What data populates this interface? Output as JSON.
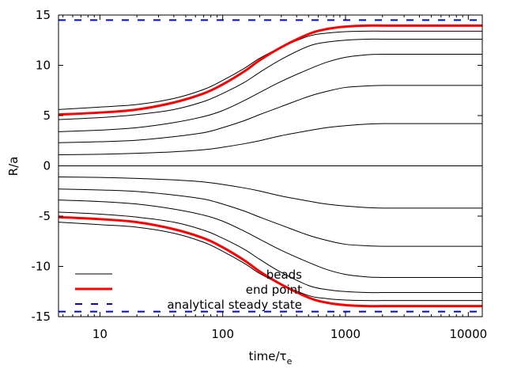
{
  "chart_data": {
    "type": "line",
    "xlabel": "time/τ",
    "xlabel_sub": "e",
    "ylabel": "R/a",
    "xscale": "log",
    "xlim": [
      4.6,
      13000
    ],
    "ylim": [
      -15,
      15
    ],
    "xticks": [
      {
        "value": 10,
        "label": "10"
      },
      {
        "value": 100,
        "label": "100"
      },
      {
        "value": 1000,
        "label": "1000"
      },
      {
        "value": 10000,
        "label": "10000"
      }
    ],
    "yticks": [
      {
        "value": 15,
        "label": "15"
      },
      {
        "value": 10,
        "label": "10"
      },
      {
        "value": 5,
        "label": "5"
      },
      {
        "value": 0,
        "label": "0"
      },
      {
        "value": -5,
        "label": "-5"
      },
      {
        "value": -10,
        "label": "-10"
      },
      {
        "value": -15,
        "label": "-15"
      }
    ],
    "x": [
      4.6,
      10,
      20,
      40,
      70,
      100,
      150,
      200,
      300,
      500,
      700,
      1000,
      1500,
      2000,
      3000,
      5000,
      13000
    ],
    "series": [
      {
        "name": "beads",
        "style": "beads",
        "values": [
          5.6,
          5.85,
          6.1,
          6.7,
          7.6,
          8.5,
          9.7,
          10.7,
          11.8,
          12.9,
          13.2,
          13.35,
          13.4,
          13.4,
          13.4,
          13.4,
          13.4
        ]
      },
      {
        "name": "end point",
        "style": "endpoint",
        "values": [
          5.1,
          5.3,
          5.6,
          6.3,
          7.2,
          8.1,
          9.4,
          10.5,
          11.8,
          13.1,
          13.6,
          13.85,
          13.95,
          13.95,
          13.95,
          13.95,
          13.95
        ]
      },
      {
        "style": "beads",
        "values": [
          4.6,
          4.8,
          5.1,
          5.6,
          6.4,
          7.2,
          8.3,
          9.3,
          10.6,
          11.9,
          12.3,
          12.5,
          12.6,
          12.6,
          12.6,
          12.6,
          12.6
        ]
      },
      {
        "style": "beads",
        "values": [
          3.4,
          3.55,
          3.8,
          4.3,
          4.9,
          5.5,
          6.5,
          7.3,
          8.4,
          9.6,
          10.3,
          10.8,
          11.05,
          11.1,
          11.1,
          11.1,
          11.1
        ]
      },
      {
        "style": "beads",
        "values": [
          2.3,
          2.4,
          2.55,
          2.9,
          3.3,
          3.8,
          4.5,
          5.1,
          5.9,
          6.9,
          7.4,
          7.8,
          7.95,
          8.0,
          8.0,
          8.0,
          8.0
        ]
      },
      {
        "style": "beads",
        "values": [
          1.1,
          1.15,
          1.25,
          1.4,
          1.6,
          1.85,
          2.2,
          2.5,
          3.0,
          3.5,
          3.8,
          4.0,
          4.15,
          4.2,
          4.2,
          4.2,
          4.2
        ]
      },
      {
        "style": "beads",
        "values": [
          0,
          0,
          0,
          0,
          0,
          0,
          0,
          0,
          0,
          0,
          0,
          0,
          0,
          0,
          0,
          0,
          0
        ]
      },
      {
        "style": "beads",
        "values": [
          -1.1,
          -1.15,
          -1.25,
          -1.4,
          -1.6,
          -1.85,
          -2.2,
          -2.5,
          -3.0,
          -3.5,
          -3.8,
          -4.0,
          -4.15,
          -4.2,
          -4.2,
          -4.2,
          -4.2
        ]
      },
      {
        "style": "beads",
        "values": [
          -2.3,
          -2.4,
          -2.55,
          -2.9,
          -3.3,
          -3.8,
          -4.5,
          -5.1,
          -5.9,
          -6.9,
          -7.4,
          -7.8,
          -7.95,
          -8.0,
          -8.0,
          -8.0,
          -8.0
        ]
      },
      {
        "style": "beads",
        "values": [
          -3.4,
          -3.55,
          -3.8,
          -4.3,
          -4.9,
          -5.5,
          -6.5,
          -7.3,
          -8.4,
          -9.6,
          -10.3,
          -10.8,
          -11.05,
          -11.1,
          -11.1,
          -11.1,
          -11.1
        ]
      },
      {
        "style": "beads",
        "values": [
          -4.6,
          -4.8,
          -5.1,
          -5.6,
          -6.4,
          -7.2,
          -8.3,
          -9.3,
          -10.6,
          -11.9,
          -12.3,
          -12.5,
          -12.6,
          -12.6,
          -12.6,
          -12.6,
          -12.6
        ]
      },
      {
        "style": "endpoint",
        "values": [
          -5.1,
          -5.3,
          -5.6,
          -6.3,
          -7.2,
          -8.1,
          -9.4,
          -10.5,
          -11.8,
          -13.1,
          -13.6,
          -13.85,
          -13.95,
          -13.95,
          -13.95,
          -13.95,
          -13.95
        ]
      },
      {
        "style": "beads",
        "values": [
          -5.6,
          -5.85,
          -6.1,
          -6.7,
          -7.6,
          -8.5,
          -9.7,
          -10.7,
          -11.8,
          -12.9,
          -13.2,
          -13.35,
          -13.4,
          -13.4,
          -13.4,
          -13.4,
          -13.4
        ]
      }
    ],
    "steady_state": {
      "name": "analytical steady state",
      "values": [
        14.5,
        -14.5
      ]
    },
    "legend": {
      "placement": "bottom-left",
      "entries": [
        {
          "label": "beads",
          "style": "beads"
        },
        {
          "label": "end point",
          "style": "endpoint"
        },
        {
          "label": "analytical steady state",
          "style": "steady"
        }
      ]
    },
    "colors": {
      "beads": "#000000",
      "endpoint": "#ff0000",
      "steady": "#0000ff"
    }
  }
}
